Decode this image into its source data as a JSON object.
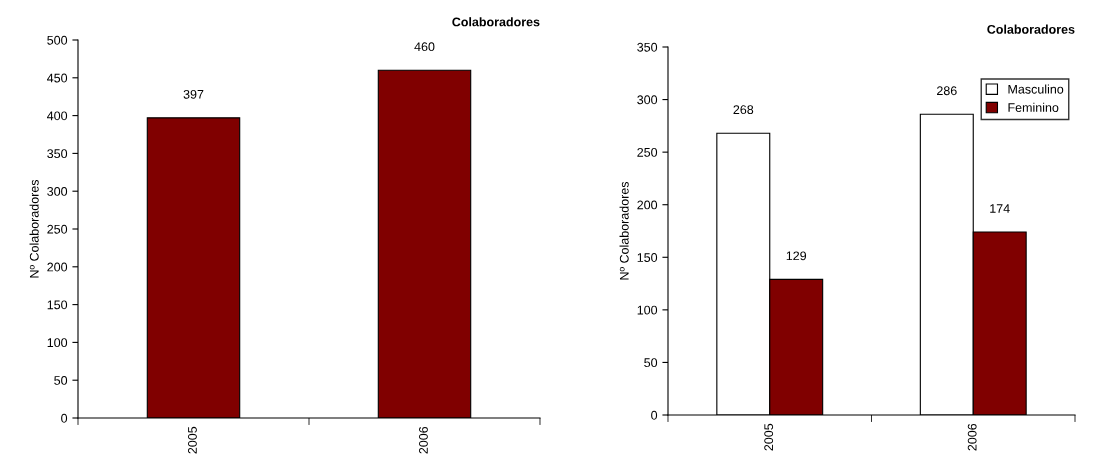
{
  "chart_data": [
    {
      "type": "bar",
      "title": "Colaboradores",
      "ylabel": "Nº Colaboradores",
      "categories": [
        "2005",
        "2006"
      ],
      "values": [
        397,
        460
      ],
      "color": "#800000",
      "ylim": [
        0,
        500
      ],
      "yticks": [
        0,
        50,
        100,
        150,
        200,
        250,
        300,
        350,
        400,
        450,
        500
      ],
      "data_labels": true,
      "grid": false,
      "legend": false
    },
    {
      "type": "bar",
      "title": "Colaboradores",
      "ylabel": "Nº Colaboradores",
      "categories": [
        "2005",
        "2006"
      ],
      "series": [
        {
          "name": "Masculino",
          "color": "#ffffff",
          "values": [
            268,
            286
          ]
        },
        {
          "name": "Feminino",
          "color": "#800000",
          "values": [
            129,
            174
          ]
        }
      ],
      "ylim": [
        0,
        350
      ],
      "yticks": [
        0,
        50,
        100,
        150,
        200,
        250,
        300,
        350
      ],
      "data_labels": true,
      "grid": false,
      "legend": "top right"
    }
  ]
}
